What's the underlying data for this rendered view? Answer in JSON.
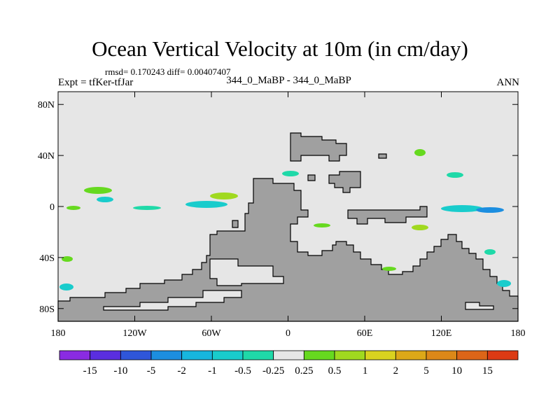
{
  "title": "Ocean Vertical Velocity at 10m (in cm/day)",
  "stats_text": "rmsd= 0.170243 diff= 0.00407407",
  "experiment_label": "Expt = tfKer-tfJar",
  "center_label": "344_0_MaBP - 344_0_MaBP",
  "season_label": "ANN",
  "map": {
    "projection": "cylindrical-equidistant",
    "lon_range": [
      -180,
      180
    ],
    "lat_range": [
      -90,
      90
    ],
    "land_color": "#a0a0a0",
    "near_zero_color": "#e6e6e6",
    "y_ticks": [
      {
        "lat": 80,
        "label": "80N"
      },
      {
        "lat": 40,
        "label": "40N"
      },
      {
        "lat": 0,
        "label": "0"
      },
      {
        "lat": -40,
        "label": "40S"
      },
      {
        "lat": -80,
        "label": "80S"
      }
    ],
    "x_ticks": [
      {
        "lon": -180,
        "label": "180"
      },
      {
        "lon": -120,
        "label": "120W"
      },
      {
        "lon": -60,
        "label": "60W"
      },
      {
        "lon": 0,
        "label": "0"
      },
      {
        "lon": 60,
        "label": "60E"
      },
      {
        "lon": 120,
        "label": "120E"
      },
      {
        "lon": 180,
        "label": "180"
      }
    ]
  },
  "colorbar": {
    "colors": [
      "#8a2be2",
      "#5a2ee0",
      "#2f56d9",
      "#1c8ee0",
      "#17b6de",
      "#19cccc",
      "#1fd9a8",
      "#e6e6e6",
      "#66d91f",
      "#a0d91f",
      "#d9d21f",
      "#dca818",
      "#dc8818",
      "#dc6518",
      "#dc3a14"
    ],
    "labels": [
      "-15",
      "-10",
      "-5",
      "-2",
      "-1",
      "-0.5",
      "-0.25",
      "0.25",
      "0.5",
      "1",
      "2",
      "5",
      "10",
      "15"
    ]
  }
}
